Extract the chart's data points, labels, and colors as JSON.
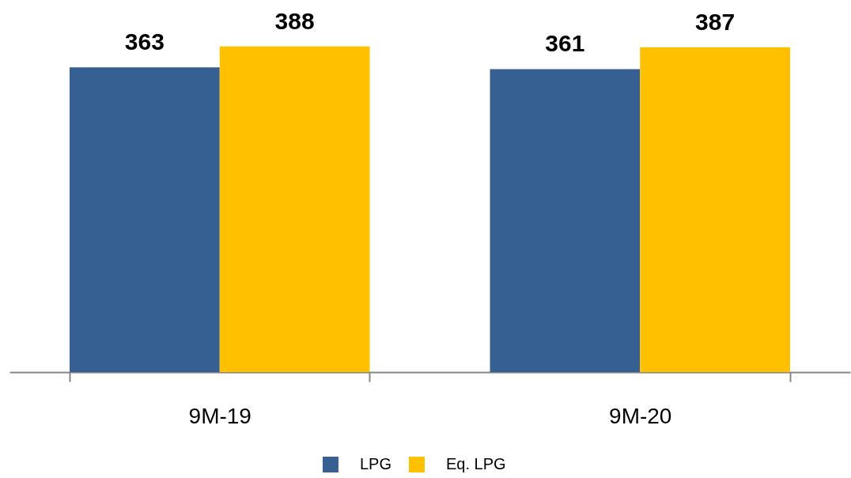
{
  "chart_data": {
    "type": "bar",
    "categories": [
      "9M-19",
      "9M-20"
    ],
    "series": [
      {
        "name": "LPG",
        "color": "#376092",
        "values": [
          363,
          361
        ]
      },
      {
        "name": "Eq. LPG",
        "color": "#ffc000",
        "values": [
          388,
          387
        ]
      }
    ],
    "data_labels": true,
    "legend": "bottom",
    "tick_labels": "x"
  }
}
